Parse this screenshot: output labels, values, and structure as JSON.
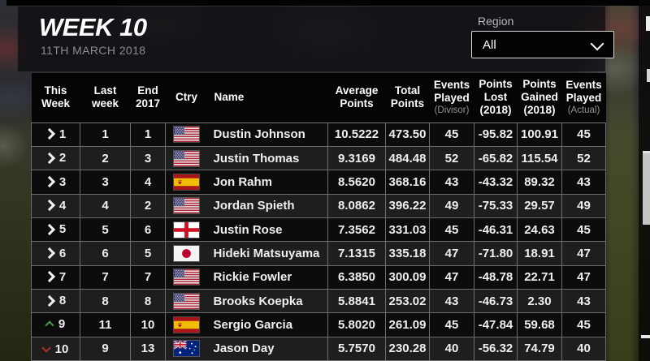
{
  "banner": {
    "title": "WEEK 10",
    "date": "11TH MARCH 2018",
    "region_label": "Region",
    "region_value": "All"
  },
  "icons": {
    "region_dropdown": "chevron-down-icon",
    "rank_steady": "chevron-right-icon",
    "rank_up": "chevron-up-icon",
    "rank_down": "chevron-down-icon"
  },
  "colors": {
    "rank_up_green": "#4e9c44",
    "rank_down_red": "#b03030",
    "row_odd_bg": "#0c0c0c",
    "row_even_bg": "#1e1e1e"
  },
  "table": {
    "columns": [
      {
        "key": "this_week",
        "line1": "This",
        "line2": "Week"
      },
      {
        "key": "last_week",
        "line1": "Last",
        "line2": "week"
      },
      {
        "key": "end_2017",
        "line1": "End",
        "line2": "2017"
      },
      {
        "key": "ctry",
        "line1": "Ctry"
      },
      {
        "key": "name",
        "line1": "Name"
      },
      {
        "key": "avg",
        "line1": "Average",
        "line2": "Points"
      },
      {
        "key": "total",
        "line1": "Total",
        "line2": "Points"
      },
      {
        "key": "events_divisor",
        "line1": "Events",
        "line2": "Played",
        "sub": "(Divisor)",
        "sub_muted": true
      },
      {
        "key": "points_lost",
        "line1": "Points",
        "line2": "Lost",
        "sub": "(2018)",
        "sub_muted": false
      },
      {
        "key": "points_gained",
        "line1": "Points",
        "line2": "Gained",
        "sub": "(2018)",
        "sub_muted": false
      },
      {
        "key": "events_actual",
        "line1": "Events",
        "line2": "Played",
        "sub": "(Actual)",
        "sub_muted": true
      }
    ],
    "rows": [
      {
        "movement": "same",
        "this_week": "1",
        "last_week": "1",
        "end_2017": "1",
        "country": "us",
        "name": "Dustin Johnson",
        "avg": "10.5222",
        "total": "473.50",
        "events_divisor": "45",
        "points_lost": "-95.82",
        "points_gained": "100.91",
        "events_actual": "45"
      },
      {
        "movement": "same",
        "this_week": "2",
        "last_week": "2",
        "end_2017": "3",
        "country": "us",
        "name": "Justin Thomas",
        "avg": "9.3169",
        "total": "484.48",
        "events_divisor": "52",
        "points_lost": "-65.82",
        "points_gained": "115.54",
        "events_actual": "52"
      },
      {
        "movement": "same",
        "this_week": "3",
        "last_week": "3",
        "end_2017": "4",
        "country": "es",
        "name": "Jon Rahm",
        "avg": "8.5620",
        "total": "368.16",
        "events_divisor": "43",
        "points_lost": "-43.32",
        "points_gained": "89.32",
        "events_actual": "43"
      },
      {
        "movement": "same",
        "this_week": "4",
        "last_week": "4",
        "end_2017": "2",
        "country": "us",
        "name": "Jordan Spieth",
        "avg": "8.0862",
        "total": "396.22",
        "events_divisor": "49",
        "points_lost": "-75.33",
        "points_gained": "29.57",
        "events_actual": "49"
      },
      {
        "movement": "same",
        "this_week": "5",
        "last_week": "5",
        "end_2017": "6",
        "country": "en",
        "name": "Justin Rose",
        "avg": "7.3562",
        "total": "331.03",
        "events_divisor": "45",
        "points_lost": "-46.31",
        "points_gained": "24.63",
        "events_actual": "45"
      },
      {
        "movement": "same",
        "this_week": "6",
        "last_week": "6",
        "end_2017": "5",
        "country": "jp",
        "name": "Hideki Matsuyama",
        "avg": "7.1315",
        "total": "335.18",
        "events_divisor": "47",
        "points_lost": "-71.80",
        "points_gained": "18.91",
        "events_actual": "47"
      },
      {
        "movement": "same",
        "this_week": "7",
        "last_week": "7",
        "end_2017": "7",
        "country": "us",
        "name": "Rickie Fowler",
        "avg": "6.3850",
        "total": "300.09",
        "events_divisor": "47",
        "points_lost": "-48.78",
        "points_gained": "22.71",
        "events_actual": "47"
      },
      {
        "movement": "same",
        "this_week": "8",
        "last_week": "8",
        "end_2017": "8",
        "country": "us",
        "name": "Brooks Koepka",
        "avg": "5.8841",
        "total": "253.02",
        "events_divisor": "43",
        "points_lost": "-46.73",
        "points_gained": "2.30",
        "events_actual": "43"
      },
      {
        "movement": "up",
        "this_week": "9",
        "last_week": "11",
        "end_2017": "10",
        "country": "es",
        "name": "Sergio Garcia",
        "avg": "5.8020",
        "total": "261.09",
        "events_divisor": "45",
        "points_lost": "-47.84",
        "points_gained": "59.68",
        "events_actual": "45"
      },
      {
        "movement": "down",
        "this_week": "10",
        "last_week": "9",
        "end_2017": "13",
        "country": "au",
        "name": "Jason Day",
        "avg": "5.7570",
        "total": "230.28",
        "events_divisor": "40",
        "points_lost": "-56.32",
        "points_gained": "74.79",
        "events_actual": "40"
      }
    ]
  }
}
